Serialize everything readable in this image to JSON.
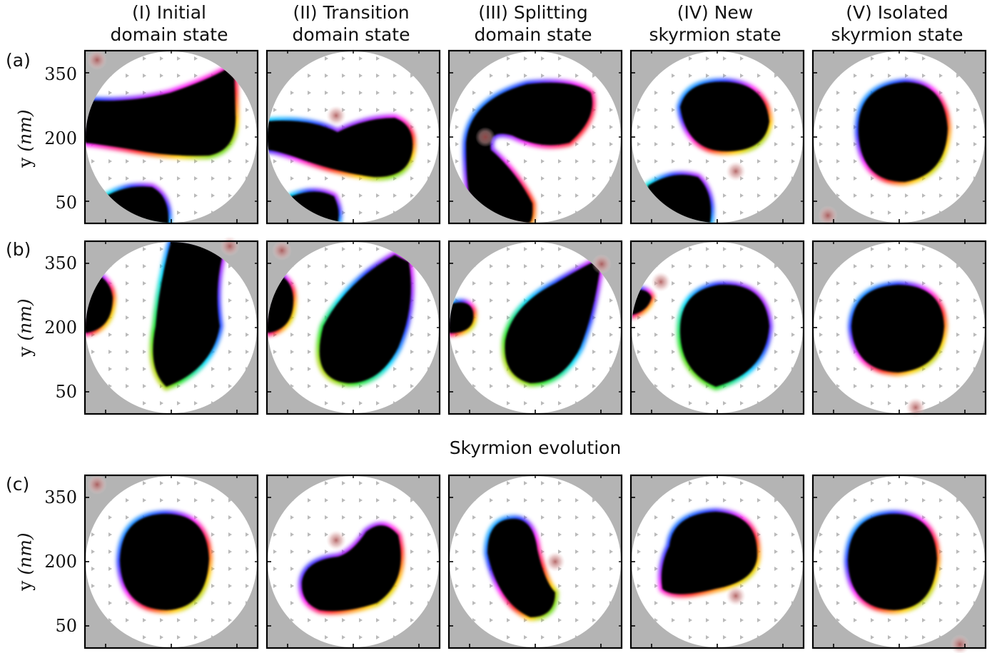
{
  "columns": [
    {
      "line1": "(I) Initial",
      "line2": "domain state"
    },
    {
      "line1": "(II) Transition",
      "line2": "domain state"
    },
    {
      "line1": "(III) Splitting",
      "line2": "domain state"
    },
    {
      "line1": "(IV) New",
      "line2": "skyrmion state"
    },
    {
      "line1": "(V) Isolated",
      "line2": "skyrmion state"
    }
  ],
  "rows": [
    {
      "label": "(a)"
    },
    {
      "label": "(b)"
    },
    {
      "label": "(c)"
    }
  ],
  "middle_title": "Skyrmion evolution",
  "axis": {
    "ylabel_prefix": "y",
    "ylabel_unit": "(nm)",
    "yticks": [
      "350",
      "200",
      "50"
    ]
  },
  "colors": {
    "frame": "#000000",
    "background_outside_disk": "#b4b4b4",
    "disk": "#ffffff",
    "domain": "#000000",
    "arrow": "#555555",
    "defect": "#c87878"
  }
}
